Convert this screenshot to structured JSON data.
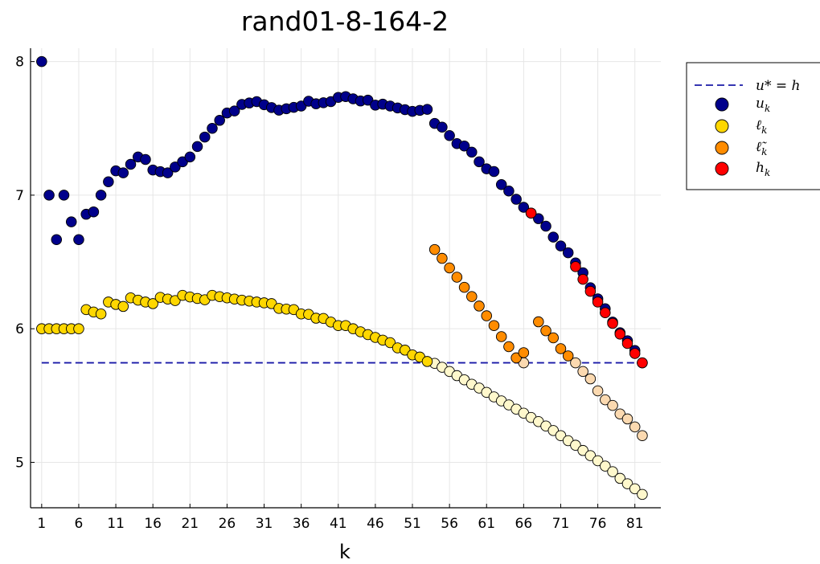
{
  "chart_data": {
    "type": "scatter",
    "title": "rand01-8-164-2",
    "xlabel": "k",
    "ylabel": "",
    "xlim": [
      -0.5,
      84.5
    ],
    "ylim": [
      4.66,
      8.1
    ],
    "xticks": [
      1,
      6,
      11,
      16,
      21,
      26,
      31,
      36,
      41,
      46,
      51,
      56,
      61,
      66,
      71,
      76,
      81
    ],
    "yticks": [
      5,
      6,
      7,
      8
    ],
    "grid": true,
    "legend_position": "top-right",
    "reference_line": {
      "name": "u* = h",
      "y": 5.745,
      "color": "#1a1aa8",
      "style": "dashed"
    },
    "series": [
      {
        "name": "u_k",
        "color": "#00008b",
        "x": [
          1,
          2,
          3,
          4,
          5,
          6,
          7,
          8,
          9,
          10,
          11,
          12,
          13,
          14,
          15,
          16,
          17,
          18,
          19,
          20,
          21,
          22,
          23,
          24,
          25,
          26,
          27,
          28,
          29,
          30,
          31,
          32,
          33,
          34,
          35,
          36,
          37,
          38,
          39,
          40,
          41,
          42,
          43,
          44,
          45,
          46,
          47,
          48,
          49,
          50,
          51,
          52,
          53,
          54,
          55,
          56,
          57,
          58,
          59,
          60,
          61,
          62,
          63,
          64,
          65,
          66,
          67,
          68,
          69,
          70,
          71,
          72,
          73,
          74,
          75,
          76,
          77,
          78,
          79,
          80,
          81,
          82
        ],
        "values": [
          8.0,
          7.0,
          6.667,
          7.0,
          6.8,
          6.667,
          6.857,
          6.875,
          7.0,
          7.1,
          7.182,
          7.167,
          7.231,
          7.286,
          7.267,
          7.188,
          7.176,
          7.167,
          7.211,
          7.25,
          7.286,
          7.364,
          7.435,
          7.5,
          7.56,
          7.615,
          7.63,
          7.679,
          7.69,
          7.7,
          7.677,
          7.656,
          7.636,
          7.647,
          7.657,
          7.667,
          7.703,
          7.684,
          7.692,
          7.7,
          7.732,
          7.738,
          7.721,
          7.705,
          7.711,
          7.674,
          7.681,
          7.667,
          7.653,
          7.64,
          7.627,
          7.635,
          7.642,
          7.537,
          7.509,
          7.446,
          7.386,
          7.368,
          7.322,
          7.25,
          7.197,
          7.177,
          7.079,
          7.031,
          6.969,
          6.909,
          6.866,
          6.824,
          6.768,
          6.686,
          6.62,
          6.569,
          6.493,
          6.419,
          6.307,
          6.224,
          6.15,
          6.05,
          5.97,
          5.91,
          5.837,
          5.745
        ]
      },
      {
        "name": "ℓ_k",
        "color": "#ffd700",
        "x": [
          1,
          2,
          3,
          4,
          5,
          6,
          7,
          8,
          9,
          10,
          11,
          12,
          13,
          14,
          15,
          16,
          17,
          18,
          19,
          20,
          21,
          22,
          23,
          24,
          25,
          26,
          27,
          28,
          29,
          30,
          31,
          32,
          33,
          34,
          35,
          36,
          37,
          38,
          39,
          40,
          41,
          42,
          43,
          44,
          45,
          46,
          47,
          48,
          49,
          50,
          51,
          52,
          53
        ],
        "values": [
          6.0,
          6.0,
          6.0,
          6.0,
          6.0,
          6.0,
          6.143,
          6.125,
          6.111,
          6.2,
          6.182,
          6.167,
          6.231,
          6.214,
          6.2,
          6.188,
          6.235,
          6.222,
          6.211,
          6.25,
          6.238,
          6.227,
          6.217,
          6.25,
          6.24,
          6.231,
          6.222,
          6.214,
          6.207,
          6.2,
          6.194,
          6.188,
          6.152,
          6.147,
          6.143,
          6.111,
          6.108,
          6.079,
          6.077,
          6.05,
          6.024,
          6.024,
          6.0,
          5.977,
          5.956,
          5.935,
          5.915,
          5.896,
          5.857,
          5.84,
          5.804,
          5.788,
          5.755
        ]
      },
      {
        "name": "ℓ̃_k",
        "color": "#ff8c00",
        "x": [
          54,
          55,
          56,
          57,
          58,
          59,
          60,
          61,
          62,
          63,
          64,
          65,
          66,
          68,
          69,
          70,
          71,
          72
        ],
        "values": [
          6.593,
          6.527,
          6.455,
          6.386,
          6.31,
          6.241,
          6.17,
          6.097,
          6.024,
          5.941,
          5.866,
          5.782,
          5.821,
          6.052,
          5.985,
          5.932,
          5.851,
          5.797
        ]
      },
      {
        "name": "h_k",
        "color": "#ff0000",
        "x": [
          67,
          73,
          74,
          75,
          76,
          77,
          78,
          79,
          80,
          81,
          82
        ],
        "values": [
          6.866,
          6.465,
          6.37,
          6.28,
          6.2,
          6.12,
          6.04,
          5.96,
          5.89,
          5.815,
          5.745
        ]
      },
      {
        "name": "",
        "color": "#fff8cc",
        "x": [
          54,
          55,
          56,
          57,
          58,
          59,
          60,
          61,
          62,
          63,
          64,
          65,
          66,
          67,
          68,
          69,
          70,
          71,
          72,
          73,
          74,
          75,
          76,
          77,
          78,
          79,
          80,
          81,
          82
        ],
        "values": [
          5.741,
          5.712,
          5.68,
          5.649,
          5.618,
          5.585,
          5.556,
          5.524,
          5.49,
          5.46,
          5.43,
          5.398,
          5.368,
          5.336,
          5.305,
          5.272,
          5.238,
          5.2,
          5.162,
          5.128,
          5.089,
          5.05,
          5.012,
          4.972,
          4.93,
          4.88,
          4.84,
          4.802,
          4.76
        ]
      },
      {
        "name": "",
        "color": "#fbd9b0",
        "x": [
          66,
          73,
          74,
          75,
          76,
          77,
          78,
          79,
          80,
          81,
          82
        ],
        "values": [
          5.745,
          5.745,
          5.68,
          5.625,
          5.535,
          5.468,
          5.426,
          5.362,
          5.325,
          5.265,
          5.2
        ]
      }
    ]
  }
}
